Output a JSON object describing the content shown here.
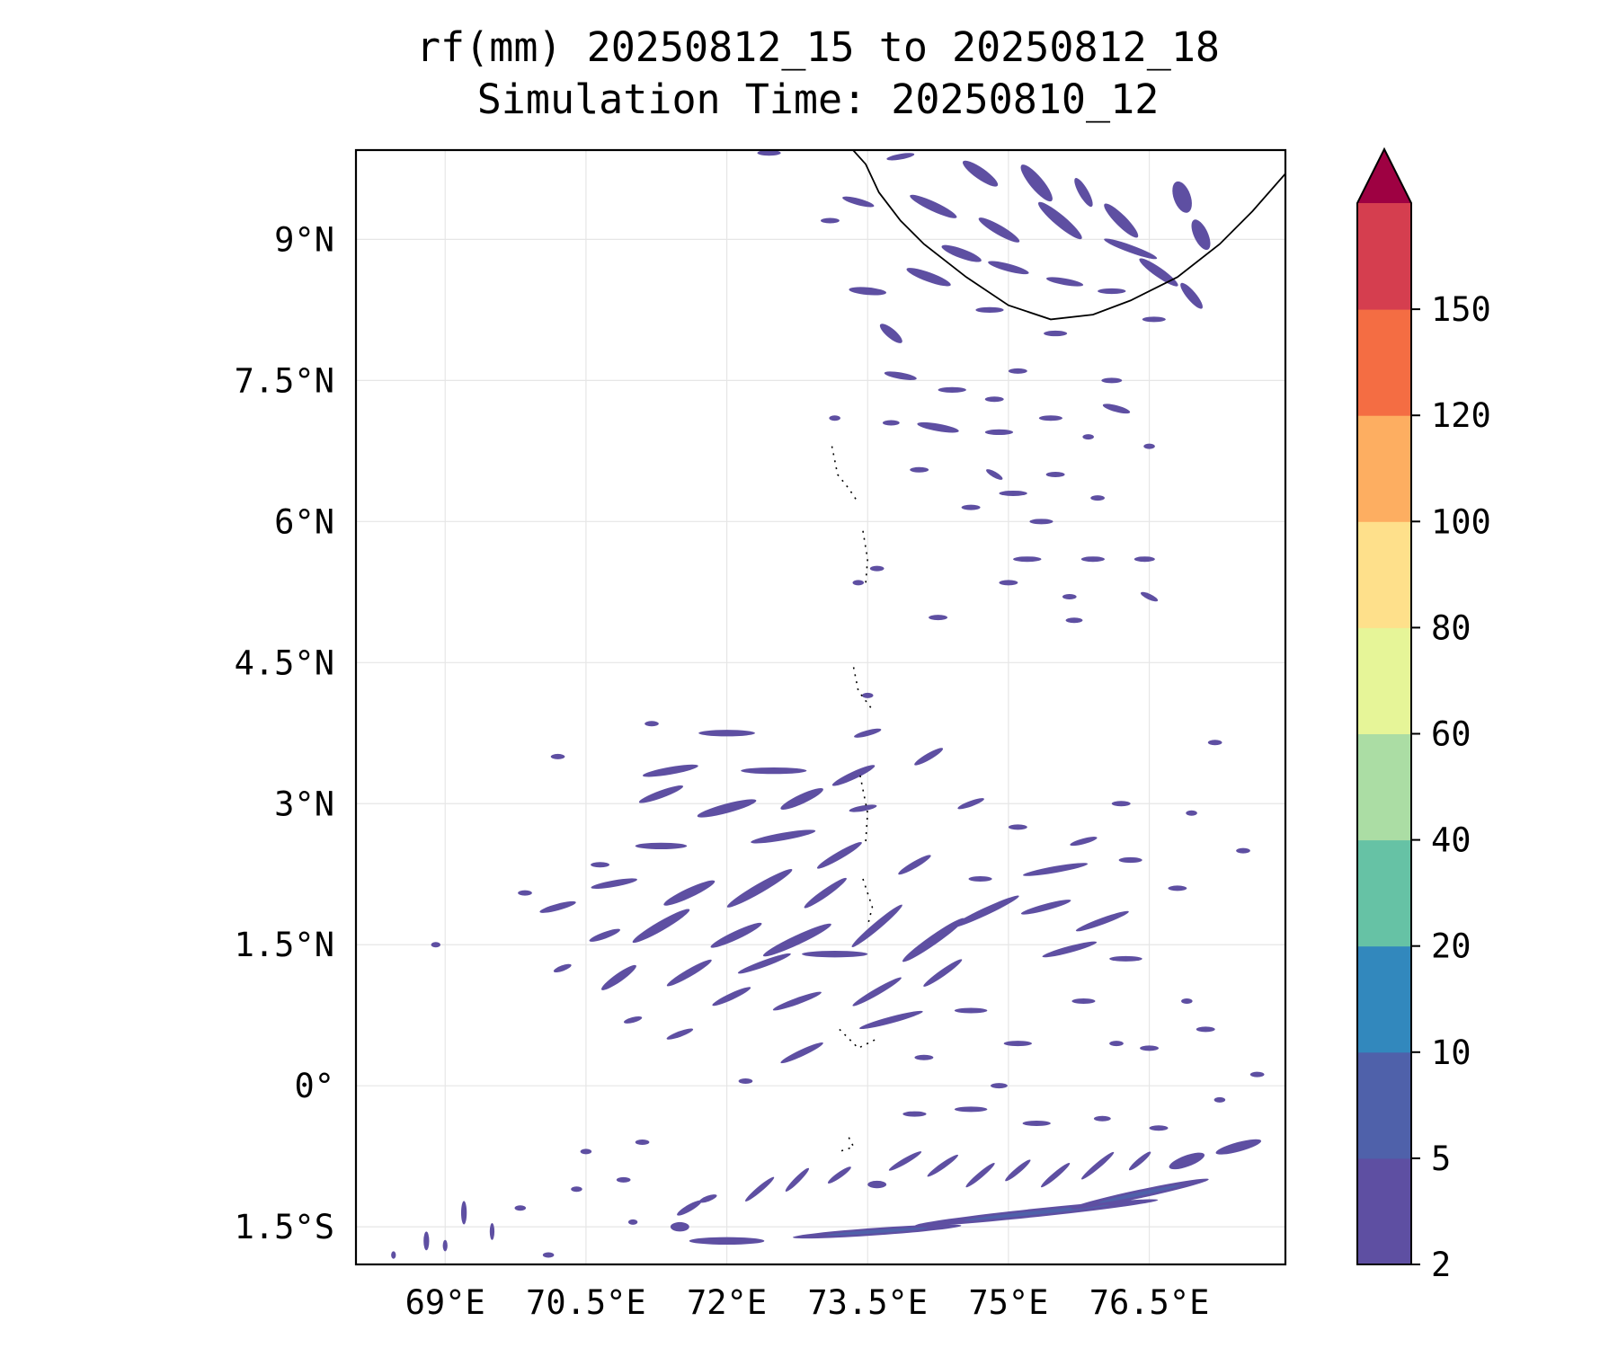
{
  "chart_data": {
    "type": "heatmap",
    "title": "rf(mm) 20250812_15 to 20250812_18",
    "subtitle": "Simulation Time: 20250810_12",
    "xlabel": "",
    "ylabel": "",
    "x_ticks": [
      {
        "value": 69.0,
        "label": "69°E"
      },
      {
        "value": 70.5,
        "label": "70.5°E"
      },
      {
        "value": 72.0,
        "label": "72°E"
      },
      {
        "value": 73.5,
        "label": "73.5°E"
      },
      {
        "value": 75.0,
        "label": "75°E"
      },
      {
        "value": 76.5,
        "label": "76.5°E"
      }
    ],
    "y_ticks": [
      {
        "value": 9.0,
        "label": "9°N"
      },
      {
        "value": 7.5,
        "label": "7.5°N"
      },
      {
        "value": 6.0,
        "label": "6°N"
      },
      {
        "value": 4.5,
        "label": "4.5°N"
      },
      {
        "value": 3.0,
        "label": "3°N"
      },
      {
        "value": 1.5,
        "label": "1.5°N"
      },
      {
        "value": 0.0,
        "label": "0°"
      },
      {
        "value": -1.5,
        "label": "1.5°S"
      }
    ],
    "xlim": [
      68.05,
      77.95
    ],
    "ylim": [
      -1.9,
      9.95
    ],
    "grid": true,
    "colorbar": {
      "levels": [
        2,
        5,
        10,
        20,
        40,
        60,
        80,
        100,
        120,
        150
      ],
      "level_labels": [
        "2",
        "5",
        "10",
        "20",
        "40",
        "60",
        "80",
        "100",
        "120",
        "150"
      ],
      "colors": [
        "#5e4fa2",
        "#4f61aa",
        "#3288bd",
        "#66c2a5",
        "#abdda4",
        "#e6f598",
        "#fee08b",
        "#fdae61",
        "#f46d43",
        "#d53e4f"
      ],
      "extend_color": "#9e0142",
      "extend": "max"
    },
    "rain_cells": [
      [
        72.45,
        9.92,
        0.25,
        0.06,
        0
      ],
      [
        73.85,
        9.88,
        0.3,
        0.06,
        10
      ],
      [
        74.7,
        9.7,
        0.45,
        0.12,
        -35
      ],
      [
        74.2,
        9.35,
        0.55,
        0.1,
        -25
      ],
      [
        75.3,
        9.6,
        0.5,
        0.14,
        -50
      ],
      [
        75.55,
        9.2,
        0.6,
        0.12,
        -40
      ],
      [
        74.9,
        9.1,
        0.5,
        0.1,
        -30
      ],
      [
        74.5,
        8.85,
        0.45,
        0.1,
        -20
      ],
      [
        73.4,
        9.4,
        0.35,
        0.07,
        -15
      ],
      [
        73.1,
        9.2,
        0.2,
        0.05,
        0
      ],
      [
        75.8,
        9.5,
        0.35,
        0.1,
        -60
      ],
      [
        76.2,
        9.2,
        0.5,
        0.12,
        -45
      ],
      [
        76.3,
        8.9,
        0.6,
        0.08,
        -20
      ],
      [
        76.6,
        8.65,
        0.5,
        0.1,
        -35
      ],
      [
        76.95,
        8.4,
        0.35,
        0.1,
        -50
      ],
      [
        76.85,
        9.45,
        0.35,
        0.18,
        -70
      ],
      [
        77.05,
        9.05,
        0.35,
        0.15,
        -65
      ],
      [
        75.0,
        8.7,
        0.45,
        0.08,
        -15
      ],
      [
        75.6,
        8.55,
        0.4,
        0.07,
        -10
      ],
      [
        76.1,
        8.45,
        0.3,
        0.06,
        0
      ],
      [
        74.15,
        8.6,
        0.5,
        0.1,
        -20
      ],
      [
        73.5,
        8.45,
        0.4,
        0.08,
        -5
      ],
      [
        73.75,
        8.0,
        0.3,
        0.1,
        -40
      ],
      [
        74.8,
        8.25,
        0.3,
        0.06,
        0
      ],
      [
        75.5,
        8.0,
        0.25,
        0.06,
        0
      ],
      [
        76.55,
        8.15,
        0.25,
        0.05,
        0
      ],
      [
        73.85,
        7.55,
        0.35,
        0.07,
        -10
      ],
      [
        74.4,
        7.4,
        0.3,
        0.06,
        0
      ],
      [
        74.25,
        7.0,
        0.45,
        0.08,
        -10
      ],
      [
        74.9,
        6.95,
        0.3,
        0.06,
        0
      ],
      [
        75.45,
        7.1,
        0.25,
        0.05,
        0
      ],
      [
        76.15,
        7.2,
        0.3,
        0.07,
        -15
      ],
      [
        76.1,
        7.5,
        0.22,
        0.05,
        0
      ],
      [
        75.1,
        7.6,
        0.2,
        0.05,
        0
      ],
      [
        74.85,
        7.3,
        0.2,
        0.05,
        0
      ],
      [
        73.15,
        7.1,
        0.12,
        0.04,
        0
      ],
      [
        73.75,
        7.05,
        0.18,
        0.04,
        0
      ],
      [
        74.05,
        6.55,
        0.2,
        0.05,
        0
      ],
      [
        74.85,
        6.5,
        0.2,
        0.06,
        -30
      ],
      [
        75.05,
        6.3,
        0.3,
        0.05,
        0
      ],
      [
        75.5,
        6.5,
        0.2,
        0.05,
        0
      ],
      [
        75.35,
        6.0,
        0.25,
        0.05,
        0
      ],
      [
        75.2,
        5.6,
        0.3,
        0.05,
        0
      ],
      [
        75.9,
        5.6,
        0.25,
        0.05,
        0
      ],
      [
        75.0,
        5.35,
        0.2,
        0.05,
        0
      ],
      [
        75.65,
        5.2,
        0.15,
        0.05,
        0
      ],
      [
        76.5,
        5.2,
        0.2,
        0.06,
        -25
      ],
      [
        75.7,
        4.95,
        0.18,
        0.04,
        0
      ],
      [
        74.6,
        6.15,
        0.2,
        0.05,
        0
      ],
      [
        76.45,
        5.6,
        0.22,
        0.04,
        0
      ],
      [
        74.25,
        4.98,
        0.2,
        0.05,
        0
      ],
      [
        75.95,
        6.25,
        0.15,
        0.05,
        0
      ],
      [
        75.85,
        6.9,
        0.12,
        0.05,
        0
      ],
      [
        76.5,
        6.8,
        0.12,
        0.04,
        0
      ],
      [
        73.4,
        5.35,
        0.12,
        0.04,
        0
      ],
      [
        73.6,
        5.5,
        0.15,
        0.04,
        0
      ],
      [
        73.5,
        4.15,
        0.12,
        0.04,
        0
      ],
      [
        72.0,
        3.75,
        0.6,
        0.07,
        0
      ],
      [
        71.4,
        3.35,
        0.6,
        0.08,
        10
      ],
      [
        71.3,
        3.1,
        0.5,
        0.08,
        20
      ],
      [
        72.5,
        3.35,
        0.7,
        0.07,
        0
      ],
      [
        72.0,
        2.95,
        0.65,
        0.1,
        15
      ],
      [
        72.8,
        3.05,
        0.5,
        0.1,
        25
      ],
      [
        71.3,
        2.55,
        0.55,
        0.07,
        0
      ],
      [
        72.6,
        2.65,
        0.7,
        0.08,
        10
      ],
      [
        73.2,
        2.45,
        0.55,
        0.08,
        30
      ],
      [
        70.8,
        2.15,
        0.5,
        0.07,
        10
      ],
      [
        71.6,
        2.05,
        0.6,
        0.1,
        25
      ],
      [
        72.35,
        2.1,
        0.8,
        0.1,
        30
      ],
      [
        73.05,
        2.05,
        0.55,
        0.08,
        35
      ],
      [
        70.2,
        1.9,
        0.4,
        0.07,
        15
      ],
      [
        70.7,
        1.6,
        0.35,
        0.07,
        20
      ],
      [
        71.3,
        1.7,
        0.7,
        0.1,
        30
      ],
      [
        72.1,
        1.6,
        0.6,
        0.09,
        25
      ],
      [
        72.75,
        1.55,
        0.8,
        0.1,
        25
      ],
      [
        73.6,
        1.7,
        0.7,
        0.08,
        40
      ],
      [
        74.2,
        1.55,
        0.8,
        0.1,
        35
      ],
      [
        74.75,
        1.85,
        0.8,
        0.08,
        25
      ],
      [
        75.5,
        2.3,
        0.7,
        0.07,
        10
      ],
      [
        75.4,
        1.9,
        0.55,
        0.07,
        15
      ],
      [
        76.0,
        1.75,
        0.6,
        0.07,
        20
      ],
      [
        75.65,
        1.45,
        0.6,
        0.07,
        15
      ],
      [
        76.25,
        1.35,
        0.35,
        0.05,
        0
      ],
      [
        73.15,
        1.4,
        0.7,
        0.07,
        0
      ],
      [
        72.4,
        1.3,
        0.6,
        0.07,
        20
      ],
      [
        71.6,
        1.2,
        0.55,
        0.08,
        30
      ],
      [
        70.85,
        1.15,
        0.45,
        0.09,
        35
      ],
      [
        70.25,
        1.25,
        0.2,
        0.06,
        20
      ],
      [
        72.05,
        0.95,
        0.45,
        0.07,
        25
      ],
      [
        72.75,
        0.9,
        0.55,
        0.07,
        20
      ],
      [
        73.6,
        1.0,
        0.6,
        0.07,
        30
      ],
      [
        74.3,
        1.2,
        0.5,
        0.07,
        35
      ],
      [
        73.75,
        0.7,
        0.7,
        0.07,
        15
      ],
      [
        74.6,
        0.8,
        0.35,
        0.05,
        0
      ],
      [
        72.8,
        0.35,
        0.5,
        0.07,
        25
      ],
      [
        71.5,
        0.55,
        0.3,
        0.06,
        20
      ],
      [
        71.0,
        0.7,
        0.2,
        0.05,
        15
      ],
      [
        73.35,
        3.3,
        0.5,
        0.08,
        25
      ],
      [
        73.45,
        2.95,
        0.3,
        0.06,
        10
      ],
      [
        73.5,
        3.75,
        0.3,
        0.06,
        15
      ],
      [
        74.15,
        3.5,
        0.35,
        0.07,
        30
      ],
      [
        74.6,
        3.0,
        0.3,
        0.06,
        20
      ],
      [
        74.0,
        2.35,
        0.4,
        0.07,
        30
      ],
      [
        75.8,
        2.6,
        0.3,
        0.06,
        15
      ],
      [
        76.3,
        2.4,
        0.25,
        0.06,
        0
      ],
      [
        75.1,
        2.75,
        0.2,
        0.05,
        0
      ],
      [
        71.2,
        3.85,
        0.15,
        0.05,
        0
      ],
      [
        70.2,
        3.5,
        0.15,
        0.04,
        0
      ],
      [
        70.65,
        2.35,
        0.2,
        0.05,
        0
      ],
      [
        69.85,
        2.05,
        0.15,
        0.04,
        0
      ],
      [
        68.9,
        1.5,
        0.1,
        0.03,
        0
      ],
      [
        76.8,
        2.1,
        0.2,
        0.05,
        0
      ],
      [
        77.5,
        2.5,
        0.15,
        0.04,
        0
      ],
      [
        76.5,
        0.4,
        0.2,
        0.05,
        0
      ],
      [
        77.1,
        0.6,
        0.2,
        0.05,
        0
      ],
      [
        75.1,
        0.45,
        0.3,
        0.05,
        0
      ],
      [
        74.9,
        0.0,
        0.18,
        0.04,
        0
      ],
      [
        75.8,
        0.9,
        0.25,
        0.05,
        0
      ],
      [
        76.15,
        0.45,
        0.15,
        0.05,
        0
      ],
      [
        76.9,
        0.9,
        0.12,
        0.04,
        0
      ],
      [
        76.0,
        -0.35,
        0.18,
        0.05,
        0
      ],
      [
        77.65,
        0.12,
        0.15,
        0.05,
        0
      ],
      [
        77.25,
        -0.15,
        0.12,
        0.04,
        0
      ],
      [
        75.3,
        -1.35,
        2.6,
        0.09,
        6
      ],
      [
        76.4,
        -1.15,
        1.5,
        0.09,
        12
      ],
      [
        73.6,
        -1.55,
        1.8,
        0.08,
        4
      ],
      [
        72.0,
        -1.65,
        0.8,
        0.08,
        0
      ],
      [
        77.45,
        -0.65,
        0.5,
        0.1,
        15
      ],
      [
        76.9,
        -0.8,
        0.4,
        0.12,
        20
      ],
      [
        71.6,
        -1.3,
        0.3,
        0.07,
        30
      ],
      [
        71.5,
        -1.5,
        0.2,
        0.1,
        0
      ],
      [
        71.8,
        -1.2,
        0.2,
        0.06,
        20
      ],
      [
        72.35,
        -1.1,
        0.4,
        0.06,
        40
      ],
      [
        72.75,
        -1.0,
        0.35,
        0.06,
        45
      ],
      [
        73.2,
        -0.95,
        0.3,
        0.06,
        35
      ],
      [
        73.6,
        -1.05,
        0.2,
        0.08,
        0
      ],
      [
        73.9,
        -0.8,
        0.4,
        0.06,
        30
      ],
      [
        74.3,
        -0.85,
        0.4,
        0.06,
        35
      ],
      [
        74.7,
        -0.95,
        0.4,
        0.06,
        40
      ],
      [
        75.1,
        -0.9,
        0.35,
        0.06,
        40
      ],
      [
        75.5,
        -0.95,
        0.4,
        0.06,
        40
      ],
      [
        75.95,
        -0.85,
        0.45,
        0.06,
        40
      ],
      [
        76.4,
        -0.8,
        0.3,
        0.06,
        40
      ],
      [
        74.0,
        -0.3,
        0.25,
        0.05,
        0
      ],
      [
        74.6,
        -0.25,
        0.35,
        0.05,
        0
      ],
      [
        75.3,
        -0.4,
        0.3,
        0.05,
        0
      ],
      [
        76.6,
        -0.45,
        0.2,
        0.05,
        0
      ],
      [
        70.9,
        -1.0,
        0.15,
        0.05,
        0
      ],
      [
        71.1,
        -0.6,
        0.15,
        0.05,
        0
      ],
      [
        70.5,
        -0.7,
        0.12,
        0.05,
        0
      ],
      [
        69.8,
        -1.3,
        0.12,
        0.04,
        0
      ],
      [
        70.1,
        -1.8,
        0.12,
        0.04,
        0
      ],
      [
        70.4,
        -1.1,
        0.12,
        0.04,
        0
      ],
      [
        69.2,
        -1.35,
        0.06,
        0.25,
        0
      ],
      [
        68.8,
        -1.65,
        0.06,
        0.2,
        0
      ],
      [
        69.5,
        -1.55,
        0.05,
        0.18,
        0
      ],
      [
        68.45,
        -1.8,
        0.05,
        0.08,
        0
      ],
      [
        69.0,
        -1.7,
        0.05,
        0.12,
        0
      ],
      [
        71.0,
        -1.45,
        0.1,
        0.04,
        0
      ],
      [
        76.2,
        3.0,
        0.2,
        0.05,
        0
      ],
      [
        77.2,
        3.65,
        0.15,
        0.04,
        0
      ],
      [
        76.95,
        2.9,
        0.12,
        0.04,
        0
      ],
      [
        74.7,
        2.2,
        0.25,
        0.05,
        0
      ],
      [
        72.2,
        0.05,
        0.15,
        0.05,
        0
      ],
      [
        74.1,
        0.3,
        0.2,
        0.05,
        0
      ]
    ],
    "coastline": [
      [
        73.3,
        10.0
      ],
      [
        73.48,
        9.8
      ],
      [
        73.62,
        9.5
      ],
      [
        73.85,
        9.2
      ],
      [
        74.1,
        8.95
      ],
      [
        74.55,
        8.6
      ],
      [
        75.0,
        8.3
      ],
      [
        75.45,
        8.15
      ],
      [
        75.9,
        8.2
      ],
      [
        76.3,
        8.35
      ],
      [
        76.8,
        8.6
      ],
      [
        77.25,
        8.95
      ],
      [
        77.6,
        9.3
      ],
      [
        77.95,
        9.7
      ]
    ],
    "islands": [
      [
        [
          73.12,
          6.8
        ],
        [
          73.18,
          6.5
        ],
        [
          73.3,
          6.35
        ],
        [
          73.4,
          6.2
        ]
      ],
      [
        [
          73.45,
          5.9
        ],
        [
          73.5,
          5.6
        ],
        [
          73.48,
          5.35
        ]
      ],
      [
        [
          73.35,
          4.45
        ],
        [
          73.4,
          4.2
        ],
        [
          73.55,
          4.0
        ]
      ],
      [
        [
          73.42,
          3.3
        ],
        [
          73.5,
          2.9
        ],
        [
          73.48,
          2.6
        ]
      ],
      [
        [
          73.45,
          2.2
        ],
        [
          73.55,
          1.9
        ],
        [
          73.5,
          1.7
        ]
      ],
      [
        [
          73.2,
          0.6
        ],
        [
          73.4,
          0.4
        ],
        [
          73.6,
          0.5
        ]
      ],
      [
        [
          73.3,
          -0.55
        ],
        [
          73.35,
          -0.65
        ],
        [
          73.2,
          -0.7
        ]
      ]
    ]
  }
}
